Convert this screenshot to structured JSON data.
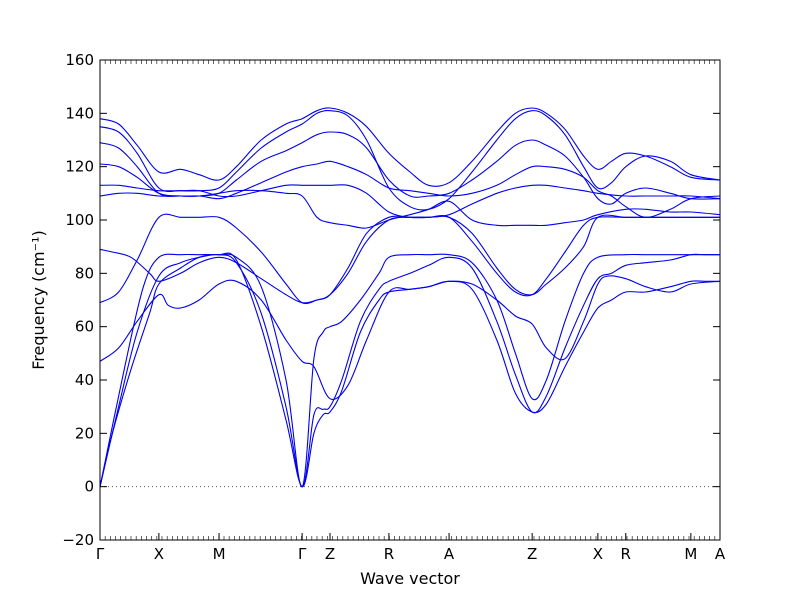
{
  "chart_data": {
    "type": "line",
    "title": "",
    "xlabel": "Wave vector",
    "ylabel": "Frequency (cm⁻¹)",
    "ylim": [
      -20,
      160
    ],
    "yticks": [
      -20,
      0,
      20,
      40,
      60,
      80,
      100,
      120,
      140,
      160
    ],
    "xlim": [
      0,
      1
    ],
    "high_symmetry_points": [
      {
        "label": "Γ",
        "x": 0.0
      },
      {
        "label": "X",
        "x": 0.095
      },
      {
        "label": "M",
        "x": 0.192
      },
      {
        "label": "Γ",
        "x": 0.326
      },
      {
        "label": "Z",
        "x": 0.371
      },
      {
        "label": "R",
        "x": 0.466
      },
      {
        "label": "A",
        "x": 0.563
      },
      {
        "label": "Z",
        "x": 0.697
      },
      {
        "label": "X",
        "x": 0.803
      },
      {
        "label": "R",
        "x": 0.848
      },
      {
        "label": "M",
        "x": 0.953
      },
      {
        "label": "A",
        "x": 1.0
      }
    ],
    "grid": false,
    "reference_line": {
      "y": 0,
      "style": "dotted"
    },
    "line_color": "#0000ee",
    "series": [
      {
        "x": [
          0,
          0.02,
          0.05,
          0.08,
          0.095,
          0.13,
          0.16,
          0.192,
          0.22,
          0.26,
          0.3,
          0.326,
          0.345,
          0.36,
          0.371,
          0.39,
          0.42,
          0.45,
          0.466,
          0.5,
          0.53,
          0.563,
          0.6,
          0.64,
          0.67,
          0.697,
          0.72,
          0.75,
          0.78,
          0.803,
          0.825,
          0.848,
          0.88,
          0.92,
          0.953,
          0.975,
          1.0
        ],
        "values": [
          0,
          20,
          44,
          65,
          76,
          82,
          86,
          87,
          85,
          60,
          25,
          0,
          20,
          27,
          28,
          36,
          58,
          70,
          73,
          74,
          75,
          77,
          74,
          55,
          35,
          28,
          31,
          45,
          58,
          67,
          70,
          73,
          73,
          75,
          77,
          77,
          77
        ]
      },
      {
        "x": [
          0,
          0.03,
          0.06,
          0.095,
          0.13,
          0.16,
          0.192,
          0.22,
          0.26,
          0.3,
          0.326,
          0.345,
          0.36,
          0.371,
          0.39,
          0.42,
          0.45,
          0.466,
          0.5,
          0.53,
          0.563,
          0.6,
          0.64,
          0.67,
          0.697,
          0.72,
          0.75,
          0.78,
          0.803,
          0.825,
          0.848,
          0.88,
          0.92,
          0.953,
          0.975,
          1.0
        ],
        "values": [
          0,
          30,
          58,
          79,
          84,
          86,
          87,
          84,
          65,
          30,
          0,
          27,
          29,
          30,
          40,
          62,
          74,
          77,
          80,
          83,
          86,
          82,
          62,
          42,
          28,
          34,
          52,
          68,
          78,
          80,
          83,
          84,
          85,
          87,
          87,
          87
        ]
      },
      {
        "x": [
          0,
          0.04,
          0.07,
          0.095,
          0.13,
          0.16,
          0.192,
          0.22,
          0.26,
          0.3,
          0.326,
          0.345,
          0.36,
          0.371,
          0.39,
          0.42,
          0.45,
          0.466,
          0.5,
          0.53,
          0.563,
          0.6,
          0.64,
          0.67,
          0.697,
          0.72,
          0.75,
          0.78,
          0.803,
          0.848,
          0.88,
          0.92,
          0.953,
          1.0
        ],
        "values": [
          0,
          45,
          75,
          86,
          87,
          87,
          87,
          86,
          75,
          40,
          0,
          48,
          58,
          60,
          62,
          70,
          80,
          86,
          87,
          87,
          87,
          84,
          70,
          50,
          33,
          40,
          62,
          80,
          86,
          87,
          87,
          87,
          87,
          87
        ]
      },
      {
        "x": [
          0,
          0.03,
          0.06,
          0.095,
          0.11,
          0.13,
          0.16,
          0.192,
          0.22,
          0.26,
          0.3,
          0.326,
          0.345,
          0.371,
          0.4,
          0.43,
          0.466,
          0.5,
          0.53,
          0.563,
          0.6,
          0.64,
          0.67,
          0.697,
          0.72,
          0.75,
          0.78,
          0.803,
          0.82,
          0.848,
          0.88,
          0.92,
          0.953,
          1.0
        ],
        "values": [
          47,
          52,
          62,
          72,
          68,
          67,
          70,
          76,
          77,
          70,
          55,
          47,
          45,
          33,
          38,
          55,
          73,
          74,
          75,
          77,
          76,
          70,
          64,
          61,
          52,
          48,
          62,
          76,
          79,
          78,
          75,
          73,
          76,
          77
        ]
      },
      {
        "x": [
          0,
          0.03,
          0.06,
          0.095,
          0.13,
          0.16,
          0.192,
          0.22,
          0.26,
          0.3,
          0.326,
          0.35,
          0.371,
          0.4,
          0.43,
          0.466,
          0.5,
          0.53,
          0.563,
          0.6,
          0.64,
          0.67,
          0.697,
          0.72,
          0.75,
          0.78,
          0.803,
          0.848,
          0.88,
          0.92,
          0.953,
          1.0
        ],
        "values": [
          69,
          73,
          85,
          101,
          101,
          101,
          101,
          97,
          88,
          76,
          69,
          70,
          72,
          80,
          92,
          100,
          101,
          101,
          101,
          95,
          82,
          74,
          72,
          76,
          82,
          90,
          101,
          101,
          101,
          101,
          101,
          101
        ]
      },
      {
        "x": [
          0,
          0.02,
          0.05,
          0.08,
          0.095,
          0.13,
          0.16,
          0.192,
          0.22,
          0.26,
          0.3,
          0.326,
          0.35,
          0.371,
          0.4,
          0.43,
          0.466,
          0.5,
          0.53,
          0.563,
          0.6,
          0.64,
          0.67,
          0.697,
          0.72,
          0.75,
          0.78,
          0.803,
          0.848,
          0.88,
          0.92,
          0.953,
          1.0
        ],
        "values": [
          89,
          88,
          86,
          80,
          77,
          80,
          84,
          86,
          84,
          78,
          72,
          69,
          70,
          72,
          82,
          95,
          101,
          101,
          101,
          101,
          92,
          80,
          73,
          72,
          78,
          88,
          98,
          101,
          101,
          101,
          101,
          101,
          101
        ]
      },
      {
        "x": [
          0,
          0.03,
          0.06,
          0.095,
          0.13,
          0.16,
          0.192,
          0.22,
          0.26,
          0.3,
          0.326,
          0.35,
          0.371,
          0.4,
          0.43,
          0.466,
          0.5,
          0.53,
          0.563,
          0.6,
          0.64,
          0.67,
          0.697,
          0.72,
          0.75,
          0.78,
          0.803,
          0.848,
          0.88,
          0.92,
          0.953,
          1.0
        ],
        "values": [
          109,
          110,
          110,
          109,
          109,
          109,
          110,
          111,
          111,
          110,
          109,
          101,
          99,
          98,
          97,
          100,
          102,
          104,
          107,
          100,
          98,
          98,
          98,
          98,
          99,
          100,
          102,
          104,
          104,
          103,
          103,
          102
        ]
      },
      {
        "x": [
          0,
          0.03,
          0.06,
          0.095,
          0.13,
          0.16,
          0.192,
          0.22,
          0.26,
          0.3,
          0.326,
          0.35,
          0.371,
          0.4,
          0.43,
          0.466,
          0.5,
          0.53,
          0.563,
          0.6,
          0.64,
          0.67,
          0.697,
          0.72,
          0.75,
          0.78,
          0.803,
          0.848,
          0.88,
          0.92,
          0.953,
          1.0
        ],
        "values": [
          113,
          113,
          112,
          111,
          111,
          111,
          109,
          109,
          111,
          113,
          113,
          113,
          113,
          113,
          110,
          103,
          101,
          101,
          102,
          106,
          110,
          112,
          113,
          113,
          112,
          111,
          110,
          109,
          109,
          109,
          109,
          108
        ]
      },
      {
        "x": [
          0,
          0.03,
          0.06,
          0.095,
          0.13,
          0.16,
          0.192,
          0.22,
          0.26,
          0.3,
          0.326,
          0.35,
          0.371,
          0.4,
          0.43,
          0.466,
          0.5,
          0.53,
          0.563,
          0.6,
          0.64,
          0.67,
          0.697,
          0.72,
          0.75,
          0.78,
          0.803,
          0.825,
          0.848,
          0.88,
          0.92,
          0.953,
          1.0
        ],
        "values": [
          121,
          120,
          116,
          110,
          109,
          109,
          108,
          110,
          114,
          118,
          120,
          121,
          122,
          120,
          117,
          112,
          111,
          110,
          109,
          110,
          113,
          117,
          120,
          120,
          119,
          116,
          111,
          109,
          105,
          101,
          104,
          108,
          109
        ]
      },
      {
        "x": [
          0,
          0.03,
          0.06,
          0.095,
          0.13,
          0.16,
          0.192,
          0.22,
          0.26,
          0.3,
          0.326,
          0.35,
          0.371,
          0.4,
          0.43,
          0.466,
          0.5,
          0.53,
          0.563,
          0.6,
          0.64,
          0.67,
          0.697,
          0.72,
          0.75,
          0.78,
          0.803,
          0.825,
          0.848,
          0.88,
          0.92,
          0.953,
          1.0
        ],
        "values": [
          129,
          127,
          120,
          110,
          109,
          109,
          110,
          115,
          122,
          126,
          129,
          132,
          133,
          132,
          127,
          115,
          109,
          109,
          110,
          115,
          122,
          128,
          130,
          128,
          124,
          116,
          108,
          106,
          110,
          112,
          110,
          108,
          108
        ]
      },
      {
        "x": [
          0,
          0.03,
          0.06,
          0.095,
          0.13,
          0.16,
          0.192,
          0.22,
          0.26,
          0.3,
          0.326,
          0.35,
          0.371,
          0.4,
          0.43,
          0.466,
          0.5,
          0.53,
          0.563,
          0.6,
          0.64,
          0.67,
          0.697,
          0.72,
          0.75,
          0.78,
          0.803,
          0.825,
          0.848,
          0.88,
          0.92,
          0.953,
          1.0
        ],
        "values": [
          135,
          133,
          125,
          112,
          111,
          111,
          112,
          118,
          127,
          133,
          136,
          140,
          141,
          139,
          130,
          112,
          105,
          104,
          108,
          118,
          130,
          138,
          141,
          139,
          132,
          120,
          112,
          114,
          120,
          124,
          122,
          117,
          115
        ]
      },
      {
        "x": [
          0,
          0.03,
          0.06,
          0.095,
          0.13,
          0.16,
          0.192,
          0.22,
          0.26,
          0.3,
          0.326,
          0.35,
          0.371,
          0.4,
          0.43,
          0.466,
          0.5,
          0.53,
          0.563,
          0.6,
          0.64,
          0.67,
          0.697,
          0.72,
          0.75,
          0.78,
          0.803,
          0.825,
          0.848,
          0.88,
          0.92,
          0.953,
          1.0
        ],
        "values": [
          138,
          136,
          128,
          118,
          119,
          117,
          115,
          120,
          130,
          136,
          138,
          141,
          142,
          140,
          135,
          125,
          118,
          113,
          114,
          122,
          133,
          140,
          142,
          140,
          134,
          124,
          119,
          122,
          125,
          124,
          120,
          116,
          115
        ]
      }
    ]
  }
}
